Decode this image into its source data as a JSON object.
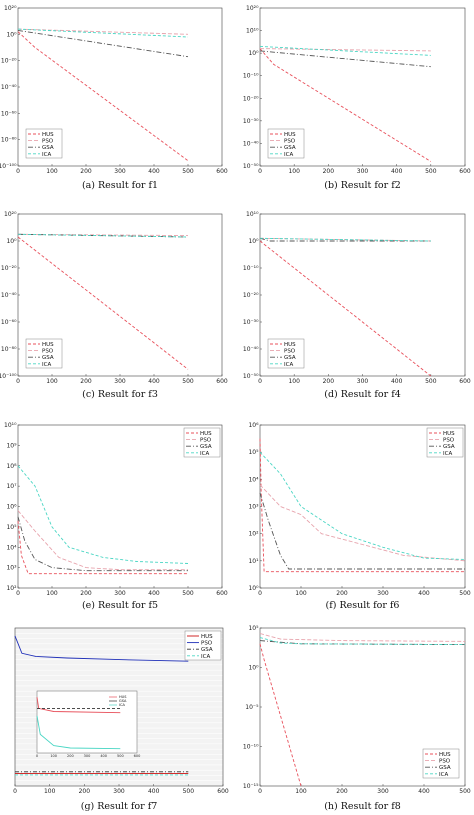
{
  "chart_data": [
    {
      "id": "f1",
      "type": "line",
      "caption": "(a)  Result for f1",
      "xlim": [
        0,
        600
      ],
      "xticks": [
        "0",
        "100",
        "200",
        "300",
        "400",
        "500",
        "600"
      ],
      "y_scale": "log",
      "ylim_exp": [
        -100,
        20
      ],
      "yticks": [
        "10⁻¹⁰⁰",
        "10⁻⁸⁰",
        "10⁻⁶⁰",
        "10⁻⁴⁰",
        "10⁻²⁰",
        "10⁰",
        "10²⁰"
      ],
      "legend": {
        "position": "bottom-left"
      },
      "series": [
        {
          "name": "HUS",
          "color": "#e8505b",
          "dash": "3,2",
          "x": [
            0,
            50,
            500
          ],
          "y_exp": [
            2,
            -10,
            -96
          ]
        },
        {
          "name": "PSO",
          "color": "#e7a3ac",
          "dash": "4,2",
          "x": [
            0,
            500
          ],
          "y_exp": [
            4,
            0
          ]
        },
        {
          "name": "GSA",
          "color": "#555555",
          "dash": "5,2,1,2",
          "x": [
            0,
            500
          ],
          "y_exp": [
            3,
            -17
          ]
        },
        {
          "name": "ICA",
          "color": "#4ad6c4",
          "dash": "3,2",
          "x": [
            0,
            500
          ],
          "y_exp": [
            4,
            -2
          ]
        }
      ]
    },
    {
      "id": "f2",
      "type": "line",
      "caption": "(b)  Result for f2",
      "xlim": [
        0,
        600
      ],
      "xticks": [
        "0",
        "100",
        "200",
        "300",
        "400",
        "500",
        "600"
      ],
      "y_scale": "log",
      "ylim_exp": [
        -50,
        20
      ],
      "yticks": [
        "10⁻⁵⁰",
        "10⁻⁴⁰",
        "10⁻³⁰",
        "10⁻²⁰",
        "10⁻¹⁰",
        "10⁰",
        "10¹⁰",
        "10²⁰"
      ],
      "legend": {
        "position": "bottom-left"
      },
      "series": [
        {
          "name": "HUS",
          "color": "#e8505b",
          "dash": "3,2",
          "x": [
            0,
            40,
            500
          ],
          "y_exp": [
            2,
            -5,
            -48
          ]
        },
        {
          "name": "PSO",
          "color": "#e7a3ac",
          "dash": "4,2",
          "x": [
            0,
            500
          ],
          "y_exp": [
            2,
            1
          ]
        },
        {
          "name": "GSA",
          "color": "#555555",
          "dash": "5,2,1,2",
          "x": [
            0,
            500
          ],
          "y_exp": [
            1,
            -6
          ]
        },
        {
          "name": "ICA",
          "color": "#4ad6c4",
          "dash": "3,2",
          "x": [
            0,
            500
          ],
          "y_exp": [
            3,
            -1
          ]
        }
      ]
    },
    {
      "id": "f3",
      "type": "line",
      "caption": "(c)  Result for f3",
      "xlim": [
        0,
        600
      ],
      "xticks": [
        "0",
        "100",
        "200",
        "300",
        "400",
        "500",
        "600"
      ],
      "y_scale": "log",
      "ylim_exp": [
        -100,
        20
      ],
      "yticks": [
        "10⁻¹⁰⁰",
        "10⁻⁸⁰",
        "10⁻⁶⁰",
        "10⁻⁴⁰",
        "10⁻²⁰",
        "10⁰",
        "10²⁰"
      ],
      "legend": {
        "position": "bottom-left"
      },
      "series": [
        {
          "name": "HUS",
          "color": "#e8505b",
          "dash": "3,2",
          "x": [
            0,
            500
          ],
          "y_exp": [
            3,
            -95
          ]
        },
        {
          "name": "PSO",
          "color": "#e7a3ac",
          "dash": "4,2",
          "x": [
            0,
            500
          ],
          "y_exp": [
            5,
            4
          ]
        },
        {
          "name": "GSA",
          "color": "#555555",
          "dash": "5,2,1,2",
          "x": [
            0,
            500
          ],
          "y_exp": [
            5,
            3
          ]
        },
        {
          "name": "ICA",
          "color": "#4ad6c4",
          "dash": "3,2",
          "x": [
            0,
            500
          ],
          "y_exp": [
            5,
            3
          ]
        }
      ]
    },
    {
      "id": "f4",
      "type": "line",
      "caption": "(d)  Result for f4",
      "xlim": [
        0,
        600
      ],
      "xticks": [
        "0",
        "100",
        "200",
        "300",
        "400",
        "500",
        "600"
      ],
      "y_scale": "log",
      "ylim_exp": [
        -50,
        10
      ],
      "yticks": [
        "10⁻⁵⁰",
        "10⁻⁴⁰",
        "10⁻³⁰",
        "10⁻²⁰",
        "10⁻¹⁰",
        "10⁰",
        "10¹⁰"
      ],
      "legend": {
        "position": "bottom-left"
      },
      "series": [
        {
          "name": "HUS",
          "color": "#e8505b",
          "dash": "3,2",
          "x": [
            0,
            500
          ],
          "y_exp": [
            0,
            -50
          ]
        },
        {
          "name": "PSO",
          "color": "#e7a3ac",
          "dash": "4,2",
          "x": [
            0,
            500
          ],
          "y_exp": [
            1,
            0
          ]
        },
        {
          "name": "GSA",
          "color": "#555555",
          "dash": "5,2,1,2",
          "x": [
            0,
            30,
            500
          ],
          "y_exp": [
            1,
            0,
            0
          ]
        },
        {
          "name": "ICA",
          "color": "#4ad6c4",
          "dash": "3,2",
          "x": [
            0,
            500
          ],
          "y_exp": [
            1,
            0
          ]
        }
      ]
    },
    {
      "id": "f5",
      "type": "line",
      "caption": "(e)  Result for f5",
      "xlim": [
        0,
        600
      ],
      "xticks": [
        "0",
        "100",
        "200",
        "300",
        "400",
        "500",
        "600"
      ],
      "y_scale": "log",
      "ylim_exp": [
        2,
        10
      ],
      "yticks": [
        "10²",
        "10³",
        "10⁴",
        "10⁵",
        "10⁶",
        "10⁷",
        "10⁸",
        "10⁹",
        "10¹⁰"
      ],
      "legend": {
        "position": "top-right"
      },
      "series": [
        {
          "name": "HUS",
          "color": "#e8505b",
          "dash": "3,2",
          "x": [
            0,
            10,
            30,
            500
          ],
          "y_exp": [
            5.3,
            3.6,
            2.7,
            2.7
          ]
        },
        {
          "name": "PSO",
          "color": "#e7a3ac",
          "dash": "4,2",
          "x": [
            0,
            50,
            120,
            200,
            300,
            500
          ],
          "y_exp": [
            5.8,
            4.8,
            3.5,
            3.0,
            2.9,
            2.9
          ]
        },
        {
          "name": "GSA",
          "color": "#555555",
          "dash": "5,2,1,2",
          "x": [
            0,
            20,
            50,
            100,
            200,
            500
          ],
          "y_exp": [
            5.5,
            4.3,
            3.4,
            3.0,
            2.85,
            2.85
          ]
        },
        {
          "name": "ICA",
          "color": "#4ad6c4",
          "dash": "3,2",
          "x": [
            0,
            50,
            100,
            150,
            250,
            350,
            500
          ],
          "y_exp": [
            8.0,
            7.0,
            5.0,
            4.0,
            3.5,
            3.3,
            3.2
          ]
        }
      ]
    },
    {
      "id": "f6",
      "type": "line",
      "caption": "(f)  Result for f6",
      "xlim": [
        0,
        500
      ],
      "xticks": [
        "0",
        "100",
        "200",
        "300",
        "400",
        "500"
      ],
      "y_scale": "log",
      "ylim_exp": [
        0,
        6
      ],
      "yticks": [
        "10⁰",
        "10¹",
        "10²",
        "10³",
        "10⁴",
        "10⁵",
        "10⁶"
      ],
      "legend": {
        "position": "top-right"
      },
      "series": [
        {
          "name": "HUS",
          "color": "#e8505b",
          "dash": "3,2",
          "x": [
            0,
            3,
            10,
            20,
            500
          ],
          "y_exp": [
            5.5,
            3.5,
            0.6,
            0.6,
            0.6
          ]
        },
        {
          "name": "PSO",
          "color": "#e7a3ac",
          "dash": "4,2",
          "x": [
            0,
            50,
            100,
            150,
            250,
            350,
            500
          ],
          "y_exp": [
            3.8,
            3.0,
            2.7,
            2.0,
            1.6,
            1.2,
            1.0
          ]
        },
        {
          "name": "GSA",
          "color": "#555555",
          "dash": "5,2,1,2",
          "x": [
            0,
            20,
            50,
            70,
            500
          ],
          "y_exp": [
            3.5,
            2.5,
            1.2,
            0.7,
            0.7
          ]
        },
        {
          "name": "ICA",
          "color": "#4ad6c4",
          "dash": "3,2",
          "x": [
            0,
            50,
            100,
            200,
            300,
            400,
            500
          ],
          "y_exp": [
            5.0,
            4.2,
            3.0,
            2.0,
            1.5,
            1.1,
            1.05
          ]
        }
      ]
    },
    {
      "id": "f7",
      "type": "line",
      "caption": "(g)  Result for f7",
      "xlim": [
        0,
        600
      ],
      "xticks": [
        "0",
        "100",
        "200",
        "300",
        "400",
        "500",
        "600"
      ],
      "legend": {
        "position": "top-right"
      },
      "series": [
        {
          "name": "HUS",
          "color": "#cc1111",
          "dash": "",
          "x": [
            0,
            500
          ],
          "y_frac": [
            0.08,
            0.08
          ]
        },
        {
          "name": "PSO",
          "color": "#1f2fb8",
          "dash": "",
          "x": [
            0,
            20,
            60,
            150,
            300,
            500
          ],
          "y_frac": [
            0.95,
            0.84,
            0.82,
            0.81,
            0.8,
            0.79
          ]
        },
        {
          "name": "GSA",
          "color": "#333333",
          "dash": "4,2,1,2",
          "x": [
            0,
            500
          ],
          "y_frac": [
            0.09,
            0.09
          ]
        },
        {
          "name": "ICA",
          "color": "#4ad6c4",
          "dash": "3,2",
          "x": [
            0,
            500
          ],
          "y_frac": [
            0.07,
            0.07
          ]
        }
      ],
      "inset": {
        "xlim": [
          0,
          600
        ],
        "xticks": [
          "0",
          "100",
          "200",
          "300",
          "400",
          "500",
          "600"
        ],
        "series": [
          {
            "name": "HUS",
            "color": "#e8505b",
            "dash": "",
            "x": [
              0,
              10,
              100,
              500
            ],
            "y_frac": [
              0.9,
              0.72,
              0.67,
              0.65
            ]
          },
          {
            "name": "GSA",
            "color": "#333333",
            "dash": "3,2",
            "x": [
              0,
              500
            ],
            "y_frac": [
              0.72,
              0.72
            ]
          },
          {
            "name": "ICA",
            "color": "#4ad6c4",
            "dash": "",
            "x": [
              0,
              20,
              100,
              200,
              500
            ],
            "y_frac": [
              0.6,
              0.3,
              0.12,
              0.08,
              0.07
            ]
          }
        ]
      }
    },
    {
      "id": "f8",
      "type": "line",
      "caption": "(h)  Result for f8",
      "xlim": [
        0,
        500
      ],
      "xticks": [
        "0",
        "100",
        "200",
        "300",
        "400",
        "500"
      ],
      "y_scale": "log",
      "ylim_exp": [
        -15,
        5
      ],
      "yticks": [
        "10⁻¹⁵",
        "10⁻¹⁰",
        "10⁻⁵",
        "10⁰",
        "10⁵"
      ],
      "legend": {
        "position": "bottom-right"
      },
      "series": [
        {
          "name": "HUS",
          "color": "#e8505b",
          "dash": "3,2",
          "x": [
            0,
            10,
            100
          ],
          "y_exp": [
            3,
            1,
            -15
          ]
        },
        {
          "name": "PSO",
          "color": "#e7a3ac",
          "dash": "4,2",
          "x": [
            0,
            50,
            200,
            500
          ],
          "y_exp": [
            4.3,
            3.6,
            3.4,
            3.3
          ]
        },
        {
          "name": "GSA",
          "color": "#555555",
          "dash": "5,2,1,2",
          "x": [
            0,
            50,
            100,
            500
          ],
          "y_exp": [
            3.4,
            3.2,
            3.0,
            2.9
          ]
        },
        {
          "name": "ICA",
          "color": "#4ad6c4",
          "dash": "3,2",
          "x": [
            0,
            50,
            100,
            500
          ],
          "y_exp": [
            3.8,
            3.1,
            3.0,
            2.9
          ]
        }
      ]
    }
  ]
}
